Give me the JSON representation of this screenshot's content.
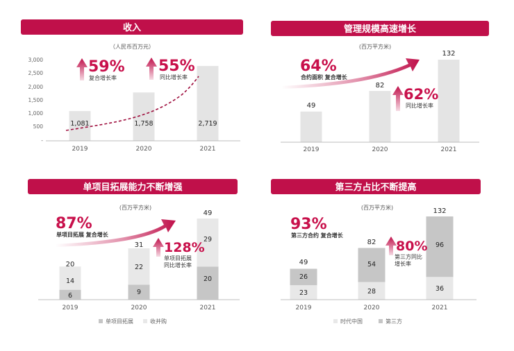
{
  "colors": {
    "accent": "#c0104a",
    "accent_dark": "#9e0c3c",
    "accent_text": "#c8104b",
    "bar": "#e4e4e4",
    "bar_dark": "#c6c6c6",
    "bar_light": "#e8e8e8",
    "axis": "#bdbdbd",
    "label": "#555555",
    "value": "#222222"
  },
  "panels": {
    "revenue": {
      "title": "收入",
      "unit": "（人民币百万元）",
      "stats": [
        {
          "value": "59%",
          "label": "复合增长率"
        },
        {
          "value": "55%",
          "label": "同比增长率"
        }
      ]
    },
    "area": {
      "title": "管理规模高速增长",
      "unit": "(百万平方米)",
      "stat_big": {
        "value": "64%",
        "label": "合约面积 复合增长"
      },
      "stat_small": {
        "value": "62%",
        "label": "同比增长率"
      }
    },
    "single": {
      "title": "单项目拓展能力不断增强",
      "unit": "(百万平方米)",
      "stat_big": {
        "value": "87%",
        "label": "单项目拓展 复合增长"
      },
      "stat_small": {
        "value": "128%",
        "label_1": "单项目拓展",
        "label_2": "同比增长率"
      }
    },
    "third": {
      "title": "第三方占比不断提高",
      "unit": "(百万平方米)",
      "stat_big": {
        "value": "93%",
        "label": "第三方合约 复合增长"
      },
      "stat_small": {
        "value": "80%",
        "label_1": "第三方同比",
        "label_2": "增长率"
      }
    }
  },
  "chart_data": [
    {
      "id": "revenue",
      "type": "bar",
      "title": "收入",
      "ylabel": "人民币百万元",
      "categories": [
        "2019",
        "2020",
        "2021"
      ],
      "values": [
        1081,
        1758,
        2719
      ],
      "value_labels": [
        "1,081",
        "1,758",
        "2,719"
      ],
      "ylim": [
        0,
        3000
      ],
      "yticks": [
        "-",
        "500",
        "1,000",
        "1,500",
        "2,000",
        "2,500",
        "3,000"
      ],
      "trend": "dashed-curve"
    },
    {
      "id": "area",
      "type": "bar",
      "title": "管理规模高速增长",
      "ylabel": "百万平方米",
      "categories": [
        "2019",
        "2020",
        "2021"
      ],
      "values": [
        49,
        82,
        132
      ],
      "ylim": [
        0,
        132
      ]
    },
    {
      "id": "single",
      "type": "bar",
      "stacked": true,
      "title": "单项目拓展能力不断增强",
      "ylabel": "百万平方米",
      "categories": [
        "2019",
        "2020",
        "2021"
      ],
      "series": [
        {
          "name": "单项目拓展",
          "values": [
            6,
            9,
            20
          ]
        },
        {
          "name": "收并购",
          "values": [
            14,
            22,
            29
          ]
        }
      ],
      "totals": [
        20,
        31,
        49
      ],
      "ylim": [
        0,
        49
      ],
      "legend": "bottom"
    },
    {
      "id": "third",
      "type": "bar",
      "stacked": true,
      "title": "第三方占比不断提高",
      "ylabel": "百万平方米",
      "categories": [
        "2019",
        "2020",
        "2021"
      ],
      "series": [
        {
          "name": "时代中国",
          "values": [
            23,
            28,
            36
          ]
        },
        {
          "name": "第三方",
          "values": [
            26,
            54,
            96
          ]
        }
      ],
      "totals": [
        49,
        82,
        132
      ],
      "ylim": [
        0,
        132
      ],
      "legend": "bottom"
    }
  ]
}
